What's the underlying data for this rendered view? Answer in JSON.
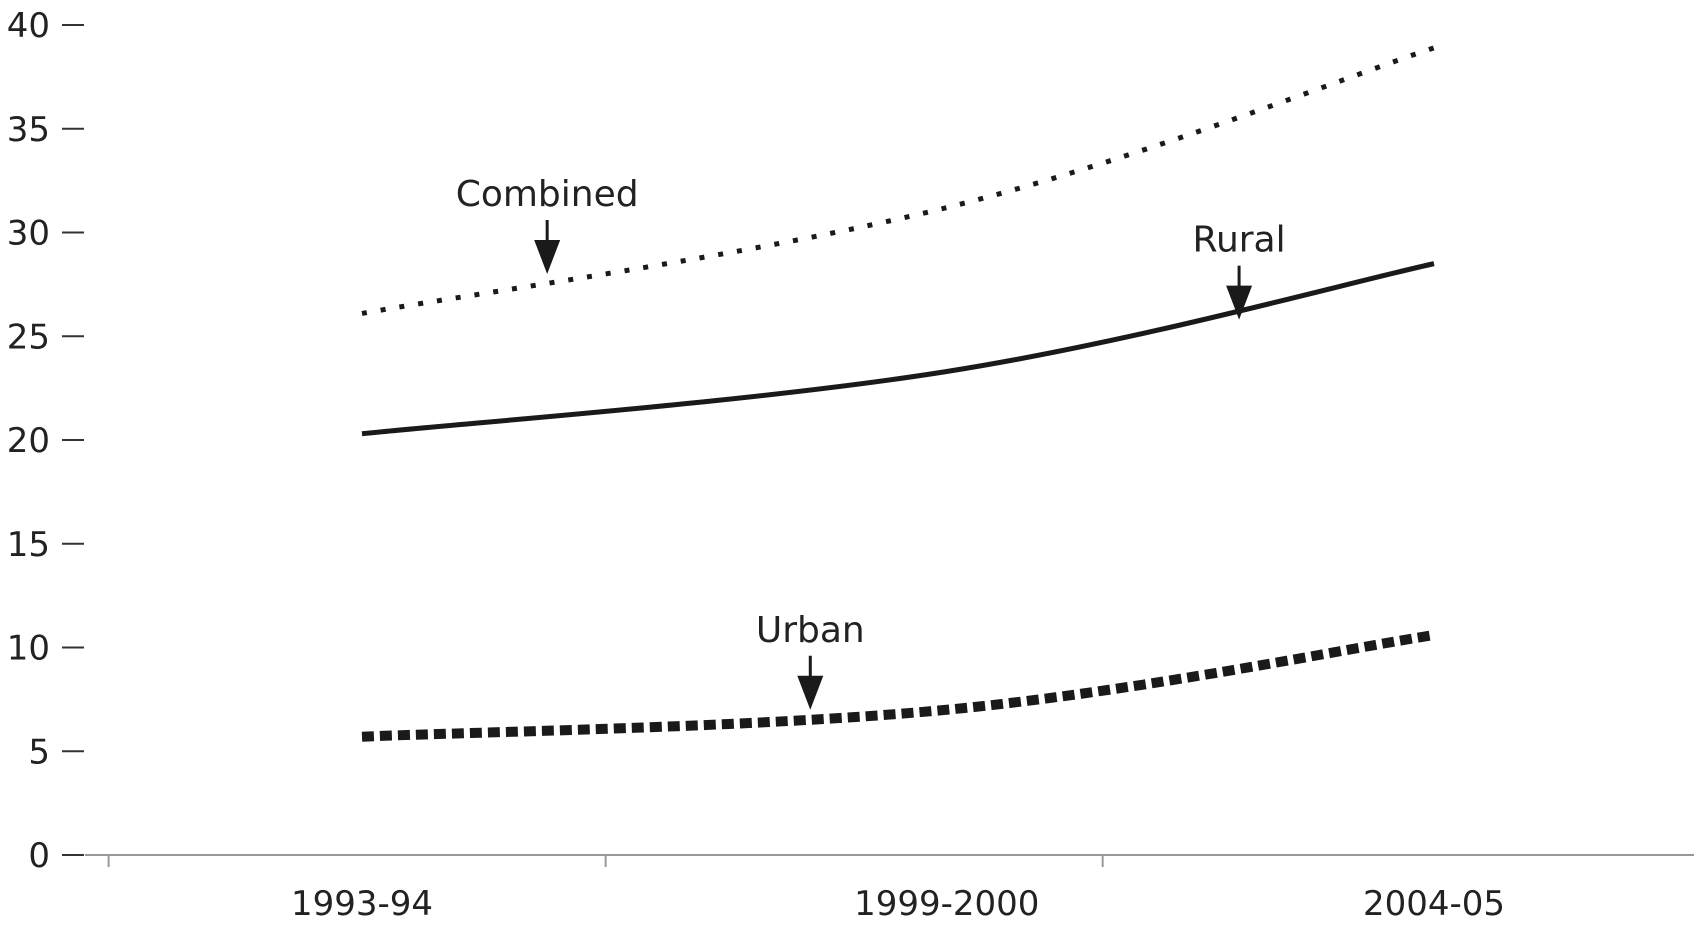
{
  "chart_data": {
    "type": "line",
    "title": "",
    "xlabel": "",
    "ylabel": "",
    "categories": [
      "1993-94",
      "1999-2000",
      "2004-05"
    ],
    "ylim": [
      0,
      40
    ],
    "yticks": [
      0,
      5,
      10,
      15,
      20,
      25,
      30,
      35,
      40
    ],
    "grid": false,
    "legend": "none",
    "series": [
      {
        "name": "Combined",
        "style": "dotted",
        "color": "#1a1a1a",
        "points": [
          {
            "x": "1993-94",
            "y": 26.1
          },
          {
            "x": "1999-2000",
            "y": 31.2
          },
          {
            "x": "2004-05",
            "y": 38.9
          }
        ]
      },
      {
        "name": "Rural",
        "style": "solid",
        "color": "#1a1a1a",
        "points": [
          {
            "x": "1993-94",
            "y": 20.3
          },
          {
            "x": "1999-2000",
            "y": 23.3
          },
          {
            "x": "2004-05",
            "y": 28.5
          }
        ]
      },
      {
        "name": "Urban",
        "style": "dashed",
        "color": "#1a1a1a",
        "points": [
          {
            "x": "1993-94",
            "y": 5.7
          },
          {
            "x": "1999-2000",
            "y": 7.0
          },
          {
            "x": "2004-05",
            "y": 10.6
          }
        ]
      }
    ],
    "annotations": [
      {
        "text": "Combined",
        "series": "Combined",
        "x": 1994.9,
        "y": 28.0
      },
      {
        "text": "Rural",
        "series": "Rural",
        "x": 2002.0,
        "y": 25.8
      },
      {
        "text": "Urban",
        "series": "Urban",
        "x": 1997.6,
        "y": 7.0
      }
    ]
  }
}
